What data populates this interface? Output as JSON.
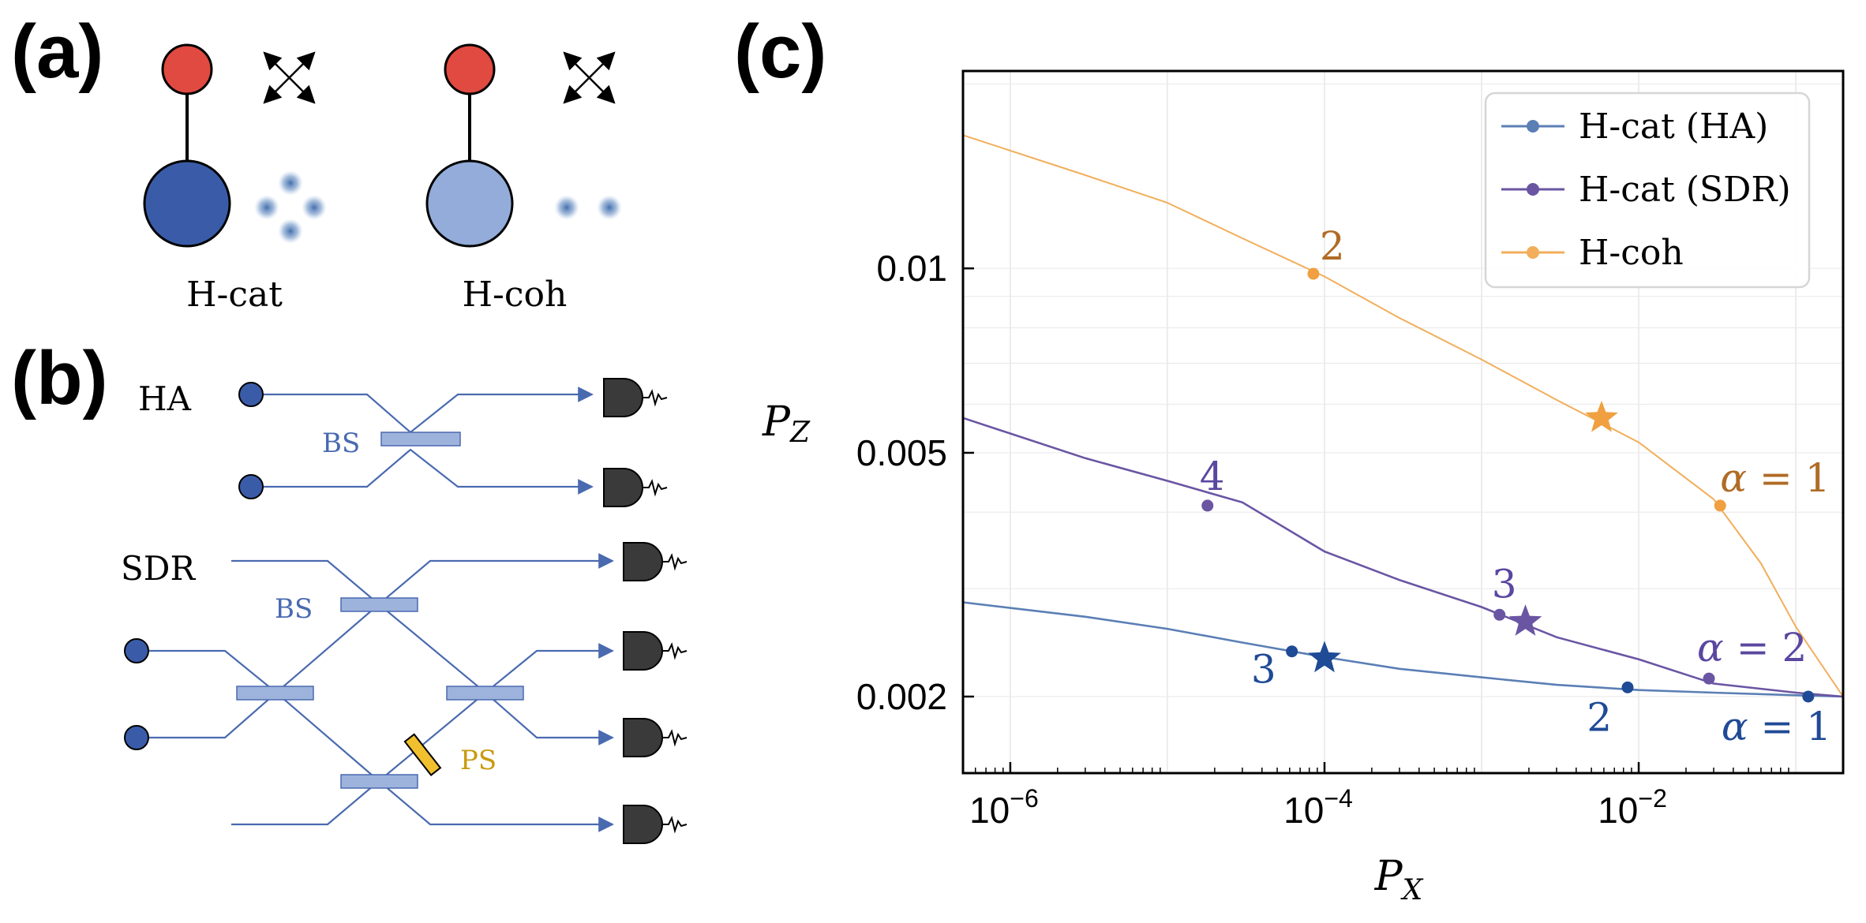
{
  "panels": {
    "a": "(a)",
    "b": "(b)",
    "c": "(c)"
  },
  "panel_a": {
    "hcat_label": "H-cat",
    "hcoh_label": "H-coh"
  },
  "panel_b": {
    "ha_label": "HA",
    "sdr_label": "SDR",
    "bs_label": "BS",
    "ps_label": "PS"
  },
  "colors": {
    "hcat_ha": "#5b7fb5",
    "hcat_sdr": "#6a55a3",
    "hcoh": "#f2ae5b",
    "qubit_red": "#e04a40",
    "dark_blue": "#3a5ca8",
    "light_blue": "#93acd9",
    "bs_fill": "#9eb3dc",
    "ps_fill": "#f0c02e",
    "waveguide": "#4a6ab0",
    "detector": "#3a3a3a"
  },
  "chart_data": {
    "type": "line",
    "xscale": "log",
    "yscale": "log",
    "xlim": [
      5e-07,
      0.2
    ],
    "ylim": [
      0.0015,
      0.021
    ],
    "xlabel": "P_X",
    "ylabel": "P_Z",
    "xticks": [
      {
        "value": 1e-06,
        "label": "10^-6"
      },
      {
        "value": 0.0001,
        "label": "10^-4"
      },
      {
        "value": 0.01,
        "label": "10^-2"
      }
    ],
    "yticks": [
      {
        "value": 0.01,
        "label": "0.01"
      },
      {
        "value": 0.005,
        "label": "0.005"
      },
      {
        "value": 0.002,
        "label": "0.002"
      }
    ],
    "legend_position": "top-right",
    "series": [
      {
        "name": "H-cat (HA)",
        "color_key": "hcat_ha",
        "curve": [
          [
            5e-07,
            0.00285
          ],
          [
            3e-06,
            0.0027
          ],
          [
            1e-05,
            0.00258
          ],
          [
            3e-05,
            0.00245
          ],
          [
            0.0001,
            0.00232
          ],
          [
            0.0003,
            0.00222
          ],
          [
            0.001,
            0.00215
          ],
          [
            0.003,
            0.00209
          ],
          [
            0.01,
            0.00205
          ],
          [
            0.03,
            0.00203
          ],
          [
            0.1,
            0.00201
          ],
          [
            0.2,
            0.002
          ]
        ],
        "points": [
          {
            "x": 6.2e-05,
            "y": 0.00237,
            "label": "3"
          },
          {
            "x": 0.0085,
            "y": 0.00207,
            "label": "2"
          },
          {
            "x": 0.12,
            "y": 0.002,
            "label": "α = 1"
          }
        ],
        "star": {
          "x": 0.0001,
          "y": 0.00231
        }
      },
      {
        "name": "H-cat (SDR)",
        "color_key": "hcat_sdr",
        "curve": [
          [
            5e-07,
            0.0057
          ],
          [
            3e-06,
            0.0049
          ],
          [
            1e-05,
            0.0045
          ],
          [
            3e-05,
            0.00415
          ],
          [
            0.0001,
            0.00345
          ],
          [
            0.0003,
            0.0031
          ],
          [
            0.001,
            0.0028
          ],
          [
            0.003,
            0.0025
          ],
          [
            0.01,
            0.0023
          ],
          [
            0.03,
            0.0021
          ],
          [
            0.1,
            0.00203
          ],
          [
            0.2,
            0.002
          ]
        ],
        "points": [
          {
            "x": 1.8e-05,
            "y": 0.0041,
            "label": "4"
          },
          {
            "x": 0.0013,
            "y": 0.00272,
            "label": "3"
          },
          {
            "x": 0.028,
            "y": 0.00214,
            "label": "α = 2"
          }
        ],
        "star": {
          "x": 0.0019,
          "y": 0.00265
        }
      },
      {
        "name": "H-coh",
        "color_key": "hcoh",
        "curve": [
          [
            5e-07,
            0.0165
          ],
          [
            3e-06,
            0.0142
          ],
          [
            1e-05,
            0.0128
          ],
          [
            3e-05,
            0.0112
          ],
          [
            0.0001,
            0.0097
          ],
          [
            0.0003,
            0.0083
          ],
          [
            0.001,
            0.0071
          ],
          [
            0.003,
            0.0061
          ],
          [
            0.01,
            0.0052
          ],
          [
            0.03,
            0.0042
          ],
          [
            0.06,
            0.0033
          ],
          [
            0.1,
            0.0026
          ],
          [
            0.2,
            0.002
          ]
        ],
        "points": [
          {
            "x": 8.5e-05,
            "y": 0.0098,
            "label": "2"
          },
          {
            "x": 0.033,
            "y": 0.0041,
            "label": "α = 1"
          }
        ],
        "star": {
          "x": 0.0058,
          "y": 0.0057
        }
      }
    ]
  }
}
